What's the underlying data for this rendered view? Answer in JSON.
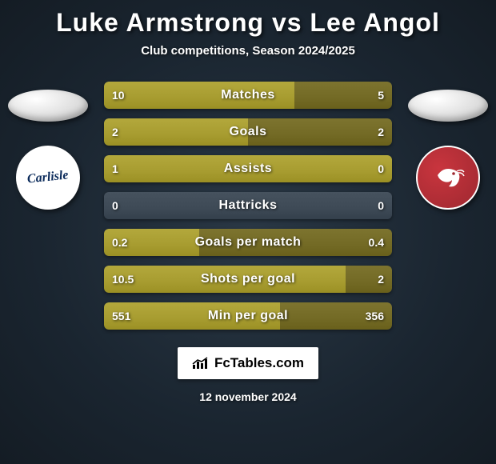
{
  "title": "Luke Armstrong vs Lee Angol",
  "subtitle": "Club competitions, Season 2024/2025",
  "date": "12 november 2024",
  "branding": "FcTables.com",
  "crest_left_text": "Carlisle",
  "crest_right_color": "#b22f37",
  "colors": {
    "bar_left": "#a79c30",
    "bar_right": "#736a25",
    "bar_empty": "#3e4a56",
    "row_bg": "#2c3944"
  },
  "fontsize": {
    "title": 32,
    "subtitle": 15,
    "bar_label": 16,
    "bar_value": 14
  },
  "stats": [
    {
      "label": "Matches",
      "left_val": "10",
      "right_val": "5",
      "left_pct": 66,
      "right_pct": 34
    },
    {
      "label": "Goals",
      "left_val": "2",
      "right_val": "2",
      "left_pct": 50,
      "right_pct": 50
    },
    {
      "label": "Assists",
      "left_val": "1",
      "right_val": "0",
      "left_pct": 100,
      "right_pct": 0
    },
    {
      "label": "Hattricks",
      "left_val": "0",
      "right_val": "0",
      "left_pct": 0,
      "right_pct": 0
    },
    {
      "label": "Goals per match",
      "left_val": "0.2",
      "right_val": "0.4",
      "left_pct": 33,
      "right_pct": 67
    },
    {
      "label": "Shots per goal",
      "left_val": "10.5",
      "right_val": "2",
      "left_pct": 84,
      "right_pct": 16
    },
    {
      "label": "Min per goal",
      "left_val": "551",
      "right_val": "356",
      "left_pct": 61,
      "right_pct": 39
    }
  ]
}
